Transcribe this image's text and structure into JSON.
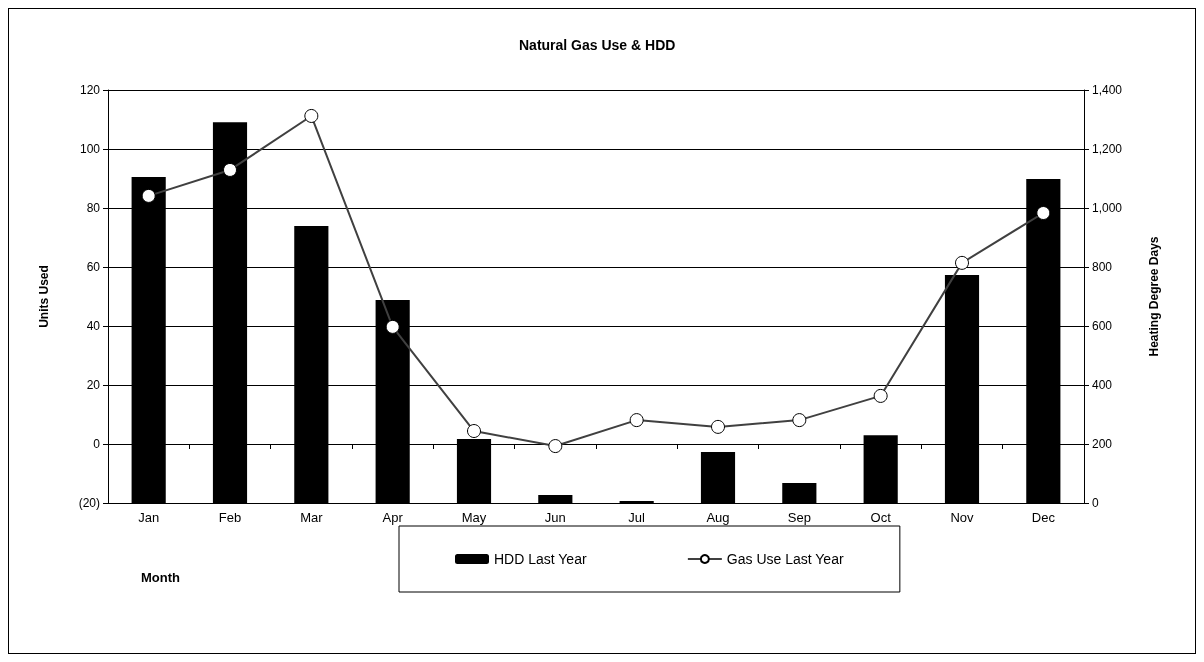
{
  "chart_data": {
    "type": "bar",
    "title": "Natural Gas Use & HDD",
    "xlabel": "Month",
    "ylabel": "Units Used",
    "y2label": "Heating Degree Days",
    "categories": [
      "Jan",
      "Feb",
      "Mar",
      "Apr",
      "May",
      "Jun",
      "Jul",
      "Aug",
      "Sep",
      "Oct",
      "Nov",
      "Dec"
    ],
    "series": [
      {
        "name": "HDD Last Year",
        "axis": "y2",
        "color": "#000000",
        "values": [
          1105,
          1291,
          939,
          688,
          217,
          27,
          7,
          173,
          68,
          230,
          773,
          1098
        ]
      },
      {
        "name": "Gas Use Last Year",
        "type": "line",
        "axis": "y",
        "color": "#404040",
        "marker": "circle",
        "values": [
          84.1,
          92.9,
          111.2,
          39.7,
          4.4,
          -0.7,
          8.1,
          5.8,
          8.1,
          16.3,
          61.4,
          78.3
        ]
      }
    ],
    "ylim": [
      -20,
      120
    ],
    "yticks": [
      {
        "value": -20,
        "label": "(20)"
      },
      {
        "value": 0,
        "label": "0"
      },
      {
        "value": 20,
        "label": "20"
      },
      {
        "value": 40,
        "label": "40"
      },
      {
        "value": 60,
        "label": "60"
      },
      {
        "value": 80,
        "label": "80"
      },
      {
        "value": 100,
        "label": "100"
      },
      {
        "value": 120,
        "label": "120"
      }
    ],
    "y2lim": [
      0,
      1400
    ],
    "y2ticks": [
      {
        "value": 0,
        "label": "0"
      },
      {
        "value": 200,
        "label": "200"
      },
      {
        "value": 400,
        "label": "400"
      },
      {
        "value": 600,
        "label": "600"
      },
      {
        "value": 800,
        "label": "800"
      },
      {
        "value": 1000,
        "label": "1,000"
      },
      {
        "value": 1200,
        "label": "1,200"
      },
      {
        "value": 1400,
        "label": "1,400"
      }
    ],
    "grid": "y",
    "legend": "bottom"
  }
}
